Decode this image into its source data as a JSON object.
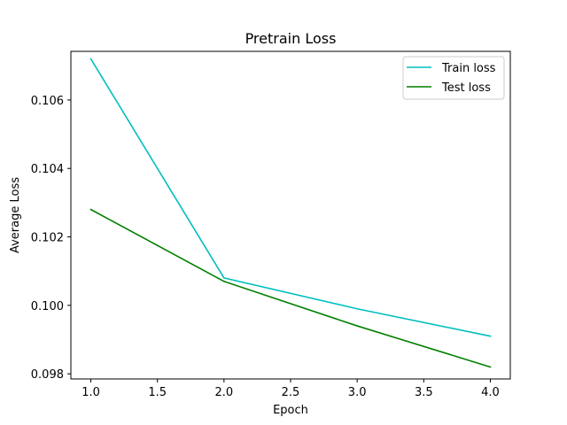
{
  "chart_data": {
    "type": "line",
    "title": "Pretrain Loss",
    "xlabel": "Epoch",
    "ylabel": "Average Loss",
    "xlim": [
      0.85,
      4.15
    ],
    "ylim": [
      0.09785,
      0.10742
    ],
    "xticks": [
      1.0,
      1.5,
      2.0,
      2.5,
      3.0,
      3.5,
      4.0
    ],
    "xtick_labels": [
      "1.0",
      "1.5",
      "2.0",
      "2.5",
      "3.0",
      "3.5",
      "4.0"
    ],
    "yticks": [
      0.098,
      0.1,
      0.102,
      0.104,
      0.106
    ],
    "ytick_labels": [
      "0.098",
      "0.100",
      "0.102",
      "0.104",
      "0.106"
    ],
    "x": [
      1,
      2,
      3,
      4
    ],
    "series": [
      {
        "name": "Train loss",
        "color": "#00bfbf",
        "values": [
          0.1072,
          0.1008,
          0.0999,
          0.0991
        ]
      },
      {
        "name": "Test loss",
        "color": "#008000",
        "values": [
          0.1028,
          0.1007,
          0.0994,
          0.0982
        ]
      }
    ],
    "legend": "top-right",
    "grid": false
  }
}
